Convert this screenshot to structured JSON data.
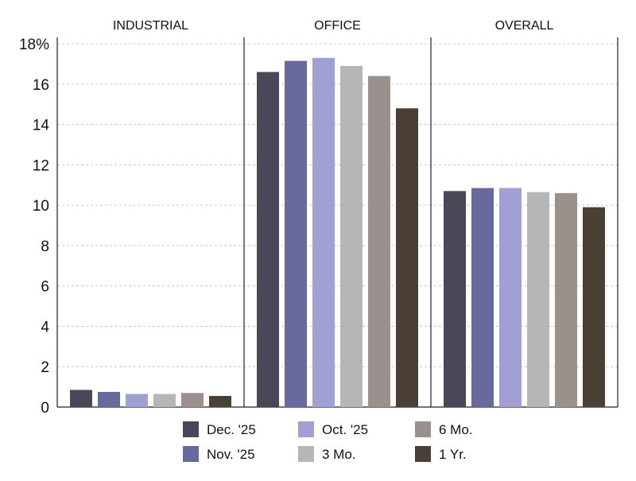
{
  "chart_data": {
    "type": "bar",
    "groups": [
      "INDUSTRIAL",
      "OFFICE",
      "OVERALL"
    ],
    "series": [
      {
        "name": "Dec. '25",
        "color": "#4a4858",
        "values": [
          0.85,
          16.6,
          10.7
        ]
      },
      {
        "name": "Nov. '25",
        "color": "#676a9c",
        "values": [
          0.75,
          17.15,
          10.85
        ]
      },
      {
        "name": "Oct. '25",
        "color": "#a0a0d2",
        "values": [
          0.65,
          17.3,
          10.85
        ]
      },
      {
        "name": "3 Mo.",
        "color": "#b4b7b6",
        "values": [
          0.65,
          16.9,
          10.65
        ]
      },
      {
        "name": "6 Mo.",
        "color": "#9a918d",
        "values": [
          0.7,
          16.4,
          10.6
        ]
      },
      {
        "name": "1 Yr.",
        "color": "#4a3f35",
        "values": [
          0.55,
          14.8,
          9.9
        ]
      }
    ],
    "y_ticks": [
      "0",
      "2",
      "4",
      "6",
      "8",
      "10",
      "12",
      "14",
      "16",
      "18%"
    ],
    "ylim": [
      0,
      18
    ],
    "grid": true,
    "legend_position": "bottom"
  }
}
